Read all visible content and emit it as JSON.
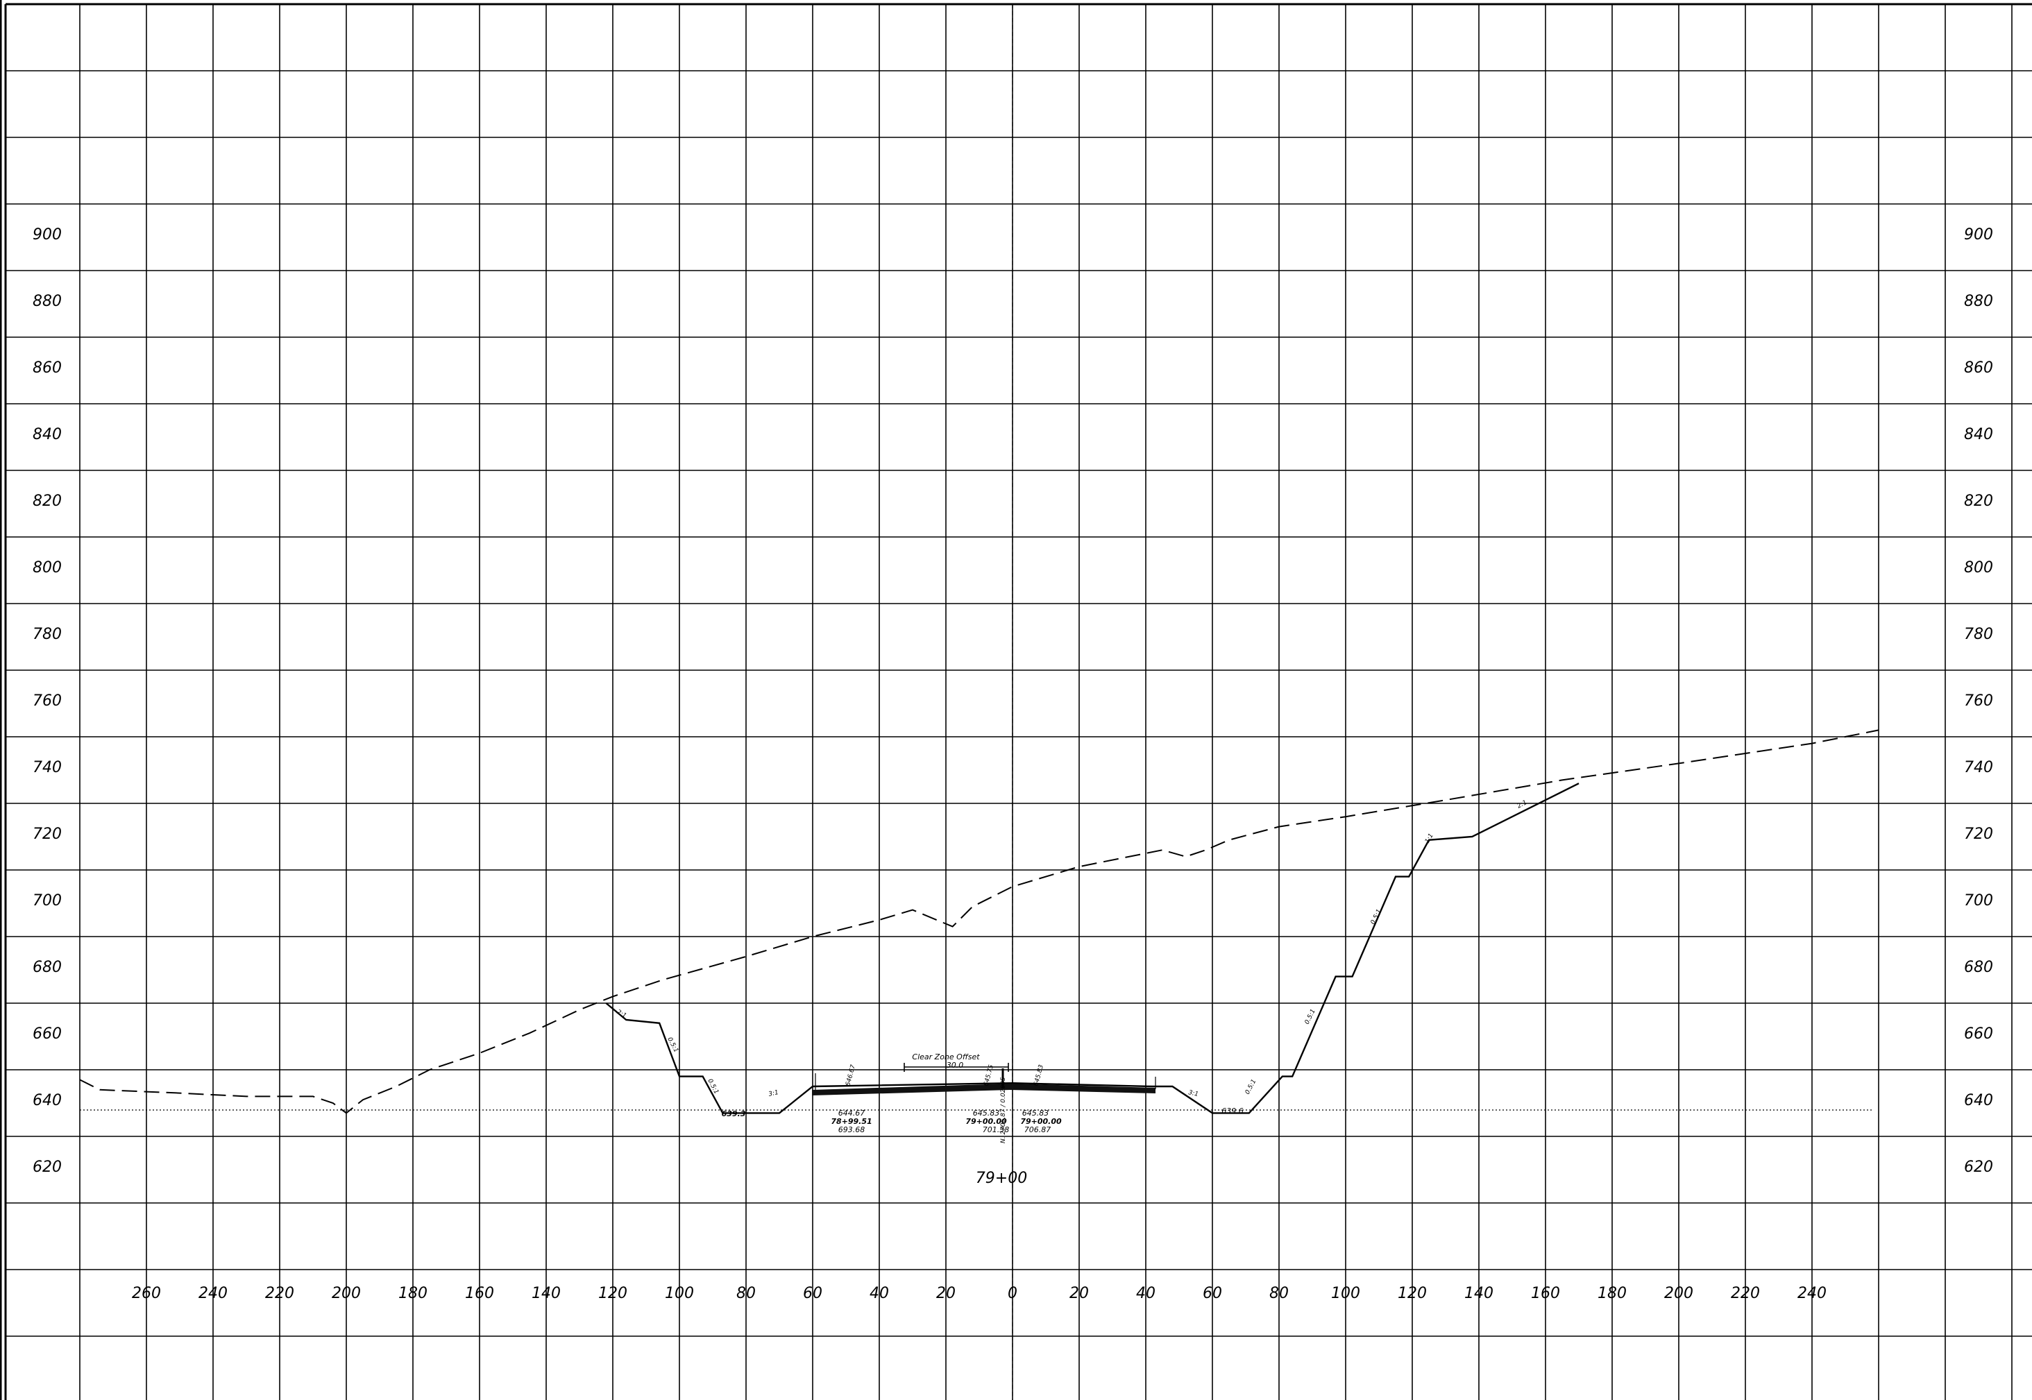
{
  "elevation_labels": [
    "900",
    "880",
    "860",
    "840",
    "820",
    "800",
    "780",
    "760",
    "740",
    "720",
    "700",
    "680",
    "660",
    "640",
    "620"
  ],
  "offset_labels": [
    "260",
    "240",
    "220",
    "200",
    "180",
    "160",
    "140",
    "120",
    "100",
    "80",
    "60",
    "40",
    "20",
    "0",
    "20",
    "40",
    "60",
    "80",
    "100",
    "120",
    "140",
    "160",
    "180",
    "200",
    "220",
    "240"
  ],
  "station_title": "79+00",
  "clear_zone": {
    "label": "Clear Zone Offset",
    "value": "30.0"
  },
  "centerline_labels": {
    "left_elev": "645.83",
    "left_station": "79+00.00",
    "left_offset": "701.38",
    "right_elev": "645.83",
    "right_station": "79+00.00",
    "right_offset": "706.87"
  },
  "left_shoulder_labels": {
    "elev": "644.67",
    "station": "78+99.51",
    "offset": "693.68"
  },
  "ditch_labels": {
    "left_bottom": "639.3",
    "right_bottom": "639.6"
  },
  "slope_labels": [
    "2:1",
    "0.5:1",
    "0.5:1",
    "3:1",
    "3:1",
    "0.5:1",
    "0.5:1",
    "0.5:1",
    "1:1",
    "2:1"
  ],
  "small_pavement_labels": [
    "646.67",
    "645.75",
    "645.83"
  ],
  "cl_vertical_text": "N. 2706.87 / 0.02005",
  "profile": {
    "elev_min": 600,
    "elev_max": 900,
    "existing_ground": [
      [
        -280,
        647
      ],
      [
        -274,
        644
      ],
      [
        -250,
        643
      ],
      [
        -230,
        642
      ],
      [
        -210,
        642
      ],
      [
        -204,
        640
      ],
      [
        -200,
        637
      ],
      [
        -195,
        641
      ],
      [
        -185,
        645
      ],
      [
        -175,
        650
      ],
      [
        -160,
        655
      ],
      [
        -145,
        661
      ],
      [
        -130,
        668
      ],
      [
        -120,
        672
      ],
      [
        -105,
        677
      ],
      [
        -80,
        684
      ],
      [
        -60,
        690
      ],
      [
        -40,
        695
      ],
      [
        -30,
        698
      ],
      [
        -18,
        693
      ],
      [
        -12,
        699
      ],
      [
        0,
        705
      ],
      [
        20,
        711
      ],
      [
        45,
        716
      ],
      [
        52,
        714
      ],
      [
        58,
        716
      ],
      [
        65,
        719
      ],
      [
        80,
        723
      ],
      [
        100,
        726
      ],
      [
        130,
        731
      ],
      [
        165,
        737
      ],
      [
        200,
        742
      ],
      [
        240,
        748
      ],
      [
        260,
        752
      ]
    ],
    "proposed_section": [
      [
        -122,
        670
      ],
      [
        -116,
        665
      ],
      [
        -106,
        664
      ],
      [
        -100,
        648
      ],
      [
        -93,
        648
      ],
      [
        -87,
        637
      ],
      [
        -70,
        637
      ],
      [
        -60,
        645
      ],
      [
        0,
        646
      ],
      [
        42,
        645
      ],
      [
        48,
        645
      ],
      [
        60,
        637
      ],
      [
        71,
        637
      ],
      [
        81,
        648
      ],
      [
        84,
        648
      ],
      [
        97,
        678
      ],
      [
        102,
        678
      ],
      [
        115,
        708
      ],
      [
        119,
        708
      ],
      [
        125,
        719
      ],
      [
        138,
        720
      ],
      [
        170,
        736
      ]
    ]
  }
}
